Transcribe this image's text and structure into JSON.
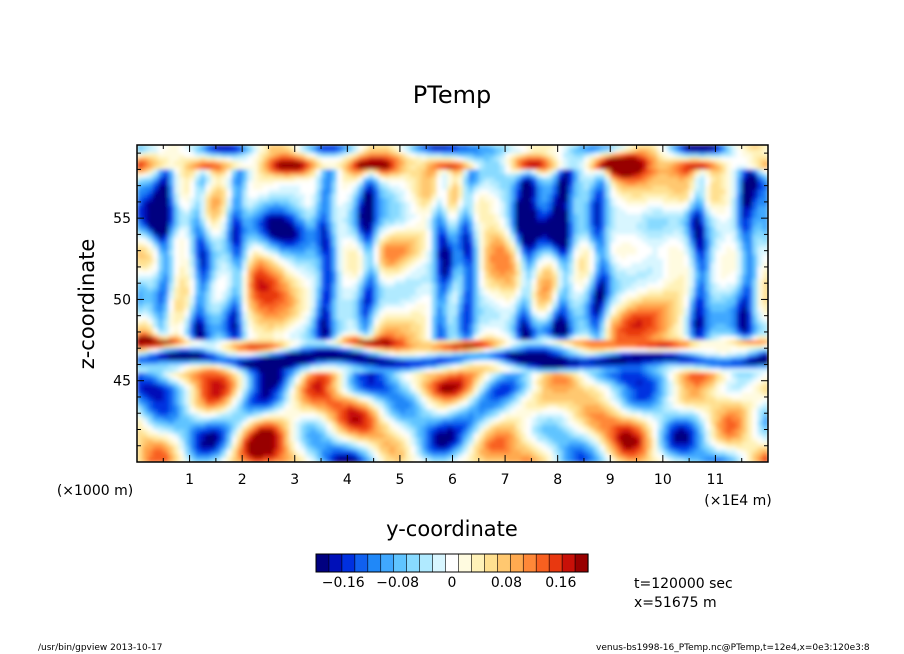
{
  "chart_data": {
    "type": "heatmap",
    "title": "PTemp",
    "xlabel": "y-coordinate",
    "ylabel": "z-coordinate",
    "x_unit": "(×1E4 m)",
    "y_unit": "(×1000 m)",
    "xlim": [
      0,
      12
    ],
    "ylim": [
      40,
      59.5
    ],
    "x_ticks": [
      "1",
      "2",
      "3",
      "4",
      "5",
      "6",
      "7",
      "8",
      "9",
      "10",
      "11"
    ],
    "y_ticks": [
      "45",
      "50",
      "55"
    ],
    "x_tick_values": [
      1,
      2,
      3,
      4,
      5,
      6,
      7,
      8,
      9,
      10,
      11
    ],
    "y_tick_values": [
      45,
      50,
      55
    ],
    "colorbar": {
      "min": -0.2,
      "max": 0.2,
      "labels": [
        "−0.16",
        "−0.08",
        "0",
        "0.08",
        "0.16"
      ],
      "label_values": [
        -0.16,
        -0.08,
        0,
        0.08,
        0.16
      ],
      "colors": [
        "#000080",
        "#0010b8",
        "#0030e0",
        "#1060f0",
        "#2088f8",
        "#40a8ff",
        "#60c4ff",
        "#88daff",
        "#b0eaff",
        "#d8f6ff",
        "#ffffff",
        "#fffbe0",
        "#fff2b8",
        "#ffe090",
        "#ffc870",
        "#ffaa50",
        "#ff8838",
        "#f86020",
        "#e83810",
        "#c81008",
        "#980000"
      ]
    },
    "features": [
      {
        "name": "cold band",
        "z": 46.3,
        "value": -0.18
      },
      {
        "name": "warm band",
        "z": 47.2,
        "value": 0.12
      },
      {
        "name": "upper cold layer",
        "z": 54.5,
        "value": -0.12
      },
      {
        "name": "top warm layer",
        "z": 58.3,
        "value": 0.15
      }
    ]
  },
  "annotations": {
    "time": "t=120000 sec",
    "position": "x=51675 m"
  },
  "footer": {
    "left": "/usr/bin/gpview   2013-10-17",
    "right": "venus-bs1998-16_PTemp.nc@PTemp,t=12e4,x=0e3:120e3:8"
  }
}
